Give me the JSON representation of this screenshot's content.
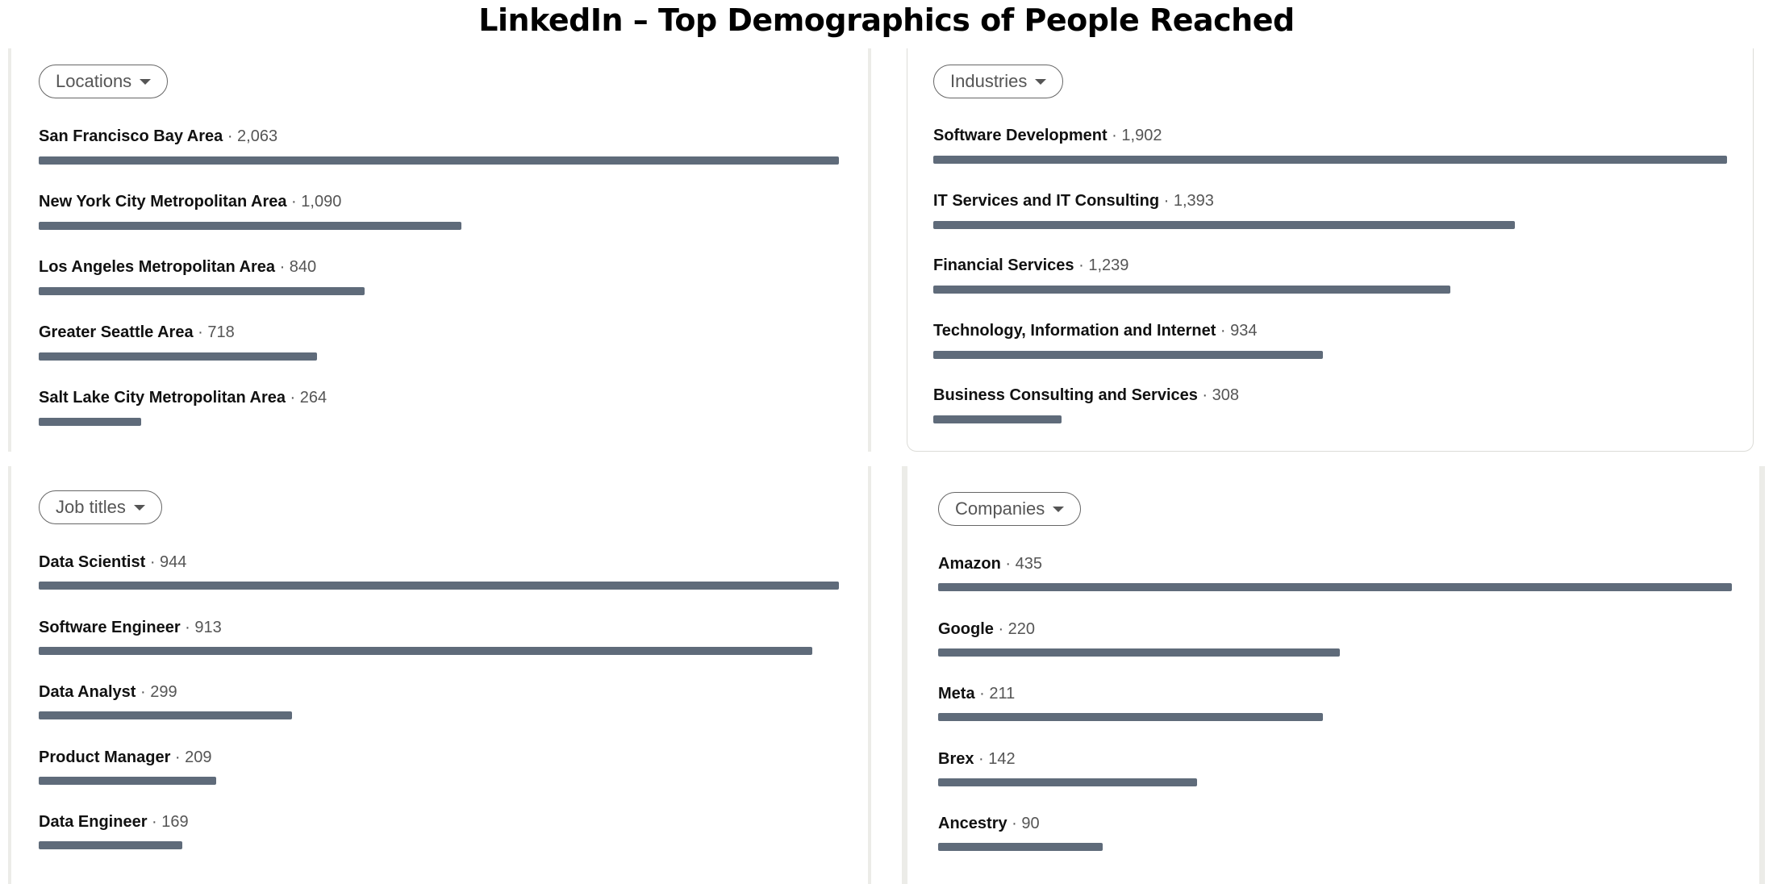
{
  "title": "LinkedIn – Top Demographics of People Reached",
  "colors": {
    "bar": "#5f6b7a",
    "text": "#111111",
    "muted": "#555555"
  },
  "chart_data": [
    {
      "type": "bar",
      "orientation": "horizontal",
      "dropdown_label": "Locations",
      "categories": [
        "San Francisco Bay Area",
        "New York City Metropolitan Area",
        "Los Angeles Metropolitan Area",
        "Greater Seattle Area",
        "Salt Lake City Metropolitan Area"
      ],
      "values": [
        2063,
        1090,
        840,
        718,
        264
      ],
      "value_labels": [
        "2,063",
        "1,090",
        "840",
        "718",
        "264"
      ]
    },
    {
      "type": "bar",
      "orientation": "horizontal",
      "dropdown_label": "Industries",
      "categories": [
        "Software Development",
        "IT Services and IT Consulting",
        "Financial Services",
        "Technology, Information and Internet",
        "Business Consulting and Services"
      ],
      "values": [
        1902,
        1393,
        1239,
        934,
        308
      ],
      "value_labels": [
        "1,902",
        "1,393",
        "1,239",
        "934",
        "308"
      ]
    },
    {
      "type": "bar",
      "orientation": "horizontal",
      "dropdown_label": "Job titles",
      "categories": [
        "Data Scientist",
        "Software Engineer",
        "Data Analyst",
        "Product Manager",
        "Data Engineer"
      ],
      "values": [
        944,
        913,
        299,
        209,
        169
      ],
      "value_labels": [
        "944",
        "913",
        "299",
        "209",
        "169"
      ]
    },
    {
      "type": "bar",
      "orientation": "horizontal",
      "dropdown_label": "Companies",
      "categories": [
        "Amazon",
        "Google",
        "Meta",
        "Brex",
        "Ancestry"
      ],
      "values": [
        435,
        220,
        211,
        142,
        90
      ],
      "value_labels": [
        "435",
        "220",
        "211",
        "142",
        "90"
      ]
    }
  ]
}
